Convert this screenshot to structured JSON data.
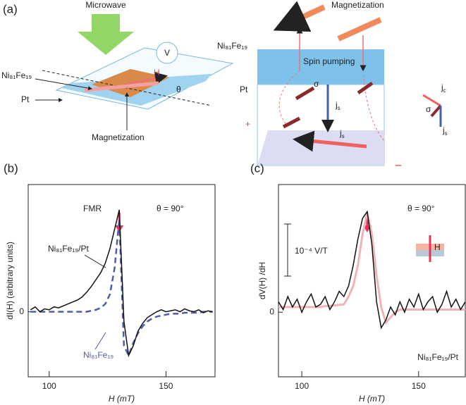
{
  "diagram": {
    "panel_label": "(a)",
    "microwave": "Microwave",
    "voltmeter": "V",
    "film_left": "Ni₈₁Fe₁₉",
    "pt_left": "Pt",
    "field": "H",
    "angle": "θ",
    "magnetization_left": "Magnetization",
    "magnetization_right": "Magnetization",
    "film_right": "Ni₈₁Fe₁₉",
    "spin_pumping": "Spin pumping",
    "pt_right": "Pt",
    "sigma_inner": "σ",
    "js_inner": "j",
    "js_inner_sub": "s",
    "js_bottom": "j",
    "js_bottom_sub": "s",
    "jc_side": "j",
    "jc_side_sub": "c",
    "sigma_side": "σ",
    "js_side": "j",
    "js_side_sub": "s",
    "plus": "+",
    "minus": "−"
  },
  "chart_data": [
    {
      "type": "line",
      "panel_label": "(b)",
      "y_label": "dI(H) (arbitrary units)",
      "x_label": "H (mT)",
      "x": [
        92,
        94,
        96,
        98,
        100,
        102,
        104,
        106,
        108,
        110,
        112,
        114,
        116,
        118,
        120,
        122,
        124,
        126,
        128,
        130,
        132,
        134,
        136,
        138,
        140,
        142,
        144,
        146,
        148,
        150,
        152,
        154,
        156,
        158,
        160,
        162,
        164,
        166,
        168,
        170
      ],
      "series": [
        {
          "name": "Ni₈₁Fe₁₉/Pt",
          "color": "#111111",
          "dashed": false,
          "values": [
            0.02,
            0.05,
            0.0,
            0.03,
            0.02,
            0.05,
            0.04,
            0.06,
            0.08,
            0.1,
            0.12,
            0.15,
            0.2,
            0.26,
            0.33,
            0.4,
            0.5,
            0.65,
            0.85,
            1.05,
            -0.1,
            -0.45,
            -0.35,
            -0.2,
            -0.12,
            -0.06,
            -0.03,
            0.0,
            0.02,
            0.0,
            0.01,
            0.02,
            0.0,
            0.03,
            0.01,
            0.0,
            0.02,
            -0.01,
            0.01,
            0.0
          ]
        },
        {
          "name": "Ni₈₁Fe₁₉",
          "color": "#4f5ea8",
          "dashed": true,
          "values": [
            0.0,
            0.0,
            0.0,
            0.0,
            0.0,
            0.0,
            0.0,
            0.0,
            0.0,
            0.0,
            0.0,
            0.0,
            0.0,
            0.01,
            0.02,
            0.04,
            0.08,
            0.18,
            0.45,
            0.95,
            -0.35,
            -0.45,
            -0.32,
            -0.22,
            -0.15,
            -0.1,
            -0.07,
            -0.05,
            -0.04,
            -0.03,
            -0.02,
            -0.02,
            -0.02,
            -0.01,
            -0.01,
            -0.01,
            -0.01,
            0.0,
            0.0,
            0.0
          ]
        }
      ],
      "xlim": [
        91,
        171
      ],
      "xticks": [
        100,
        150
      ],
      "ylim": [
        -0.67,
        1.31
      ],
      "yticks": [
        0
      ],
      "annotations": [
        "FMR",
        "θ = 90°"
      ]
    },
    {
      "type": "line",
      "panel_label": "(c)",
      "y_label": "dV(H) /dH",
      "x_label": "H (mT)",
      "x": [
        90,
        92,
        94,
        96,
        98,
        100,
        102,
        104,
        106,
        108,
        110,
        112,
        114,
        116,
        118,
        120,
        122,
        124,
        126,
        128,
        130,
        132,
        134,
        136,
        138,
        140,
        142,
        144,
        146,
        148,
        150,
        152,
        154,
        156,
        158,
        160,
        162,
        164,
        166,
        168,
        170
      ],
      "series": [
        {
          "name": "Ni₈₁Fe₁₉/Pt",
          "color": "#111111",
          "dashed": false,
          "values": [
            0.2,
            0.05,
            0.3,
            0.1,
            0.25,
            0.0,
            0.2,
            0.35,
            0.1,
            0.15,
            0.3,
            0.05,
            0.2,
            0.4,
            0.3,
            0.5,
            0.9,
            1.4,
            1.8,
            1.93,
            1.3,
            0.2,
            -0.3,
            -0.15,
            0.1,
            -0.05,
            0.2,
            0.0,
            0.25,
            0.1,
            0.35,
            0.05,
            0.2,
            0.3,
            0.0,
            0.15,
            0.4,
            0.1,
            0.25,
            0.05,
            0.2
          ]
        },
        {
          "color": "#f0b4b4",
          "dashed": false,
          "values": [
            0.1,
            0.1,
            0.1,
            0.1,
            0.1,
            0.1,
            0.1,
            0.1,
            0.1,
            0.1,
            0.12,
            0.12,
            0.13,
            0.14,
            0.15,
            0.3,
            0.5,
            0.9,
            1.5,
            1.9,
            1.5,
            0.7,
            0.1,
            -0.2,
            -0.1,
            0.0,
            0.05,
            0.05,
            0.05,
            0.05,
            0.05,
            0.05,
            0.05,
            0.05,
            0.05,
            0.05,
            0.05,
            0.05,
            0.05,
            0.05,
            0.05
          ]
        }
      ],
      "xlim": [
        90,
        170
      ],
      "xticks": [
        100,
        150
      ],
      "ylim": [
        -1.24,
        2.45
      ],
      "yticks": [
        0
      ],
      "annotations": [
        "θ = 90°",
        "10⁻⁴ V/T",
        "H"
      ]
    }
  ]
}
